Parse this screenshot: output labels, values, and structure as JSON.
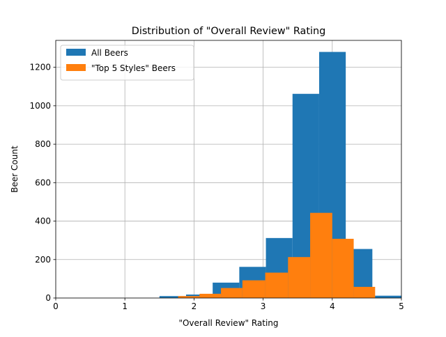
{
  "chart_data": {
    "type": "histogram",
    "title": "Distribution of \"Overall Review\" Rating",
    "xlabel": "\"Overall Review\" Rating",
    "ylabel": "Beer Count",
    "xlim": [
      0,
      5
    ],
    "ylim": [
      0,
      1340
    ],
    "x_ticks": [
      0,
      1,
      2,
      3,
      4,
      5
    ],
    "x_tick_labels": [
      "0",
      "1",
      "2",
      "3",
      "4",
      "5"
    ],
    "y_ticks": [
      0,
      200,
      400,
      600,
      800,
      1000,
      1200
    ],
    "y_tick_labels": [
      "0",
      "200",
      "400",
      "600",
      "800",
      "1000",
      "1200"
    ],
    "grid": true,
    "legend_position": "top-left",
    "series": [
      {
        "name": "All Beers",
        "color": "#1f77b4",
        "bins": [
          {
            "x0": 1.5,
            "x1": 1.885,
            "value": 10
          },
          {
            "x0": 1.885,
            "x1": 2.27,
            "value": 18
          },
          {
            "x0": 2.27,
            "x1": 2.655,
            "value": 80
          },
          {
            "x0": 2.655,
            "x1": 3.04,
            "value": 162
          },
          {
            "x0": 3.04,
            "x1": 3.425,
            "value": 312
          },
          {
            "x0": 3.425,
            "x1": 3.81,
            "value": 1062
          },
          {
            "x0": 3.81,
            "x1": 4.195,
            "value": 1280
          },
          {
            "x0": 4.195,
            "x1": 4.58,
            "value": 255
          },
          {
            "x0": 4.58,
            "x1": 5.0,
            "value": 12
          }
        ]
      },
      {
        "name": "\"Top 5 Styles\" Beers",
        "color": "#ff7f0e",
        "bins": [
          {
            "x0": 1.77,
            "x1": 2.08,
            "value": 10
          },
          {
            "x0": 2.08,
            "x1": 2.39,
            "value": 22
          },
          {
            "x0": 2.39,
            "x1": 2.7,
            "value": 52
          },
          {
            "x0": 2.7,
            "x1": 3.03,
            "value": 92
          },
          {
            "x0": 3.03,
            "x1": 3.36,
            "value": 132
          },
          {
            "x0": 3.36,
            "x1": 3.68,
            "value": 213
          },
          {
            "x0": 3.68,
            "x1": 4.0,
            "value": 443
          },
          {
            "x0": 4.0,
            "x1": 4.31,
            "value": 308
          },
          {
            "x0": 4.31,
            "x1": 4.62,
            "value": 58
          }
        ]
      }
    ]
  }
}
